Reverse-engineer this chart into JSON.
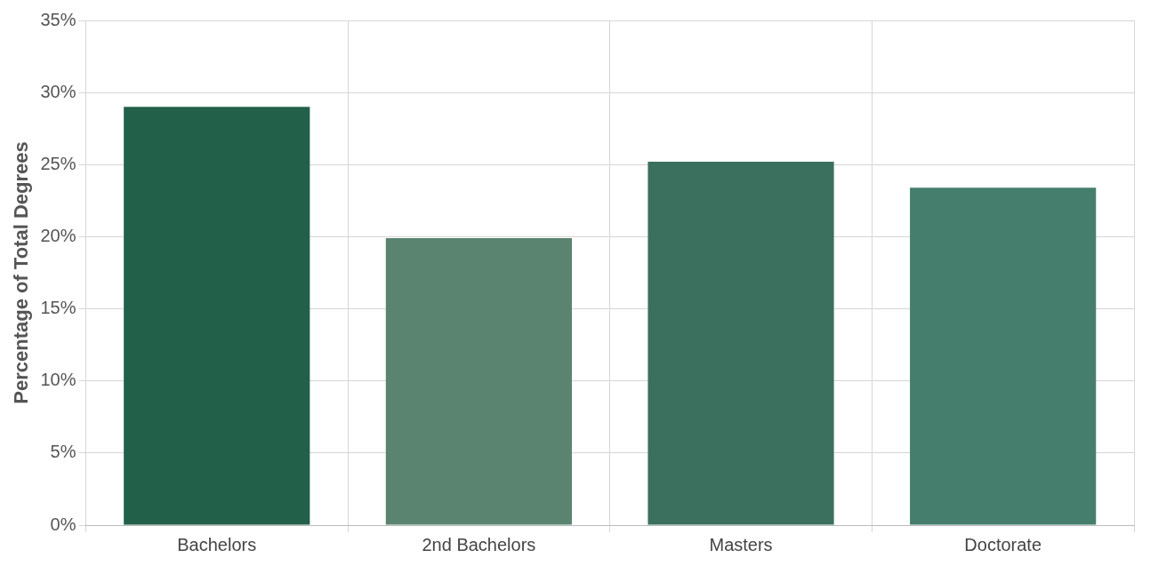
{
  "chart_data": {
    "type": "bar",
    "ylabel": "Percentage of Total Degrees",
    "categories": [
      "Bachelors",
      "2nd Bachelors",
      "Masters",
      "Doctorate"
    ],
    "values": [
      29.0,
      19.9,
      25.2,
      23.4
    ],
    "colors": [
      "#23604a",
      "#5a8470",
      "#3b705f",
      "#467e6d"
    ],
    "ylim": [
      0,
      35
    ],
    "yticks": [
      {
        "value": 0,
        "label": "0%"
      },
      {
        "value": 5,
        "label": "5%"
      },
      {
        "value": 10,
        "label": "10%"
      },
      {
        "value": 15,
        "label": "15%"
      },
      {
        "value": 20,
        "label": "20%"
      },
      {
        "value": 25,
        "label": "25%"
      },
      {
        "value": 30,
        "label": "30%"
      },
      {
        "value": 35,
        "label": "35%"
      }
    ],
    "grid": true,
    "legend": false
  }
}
